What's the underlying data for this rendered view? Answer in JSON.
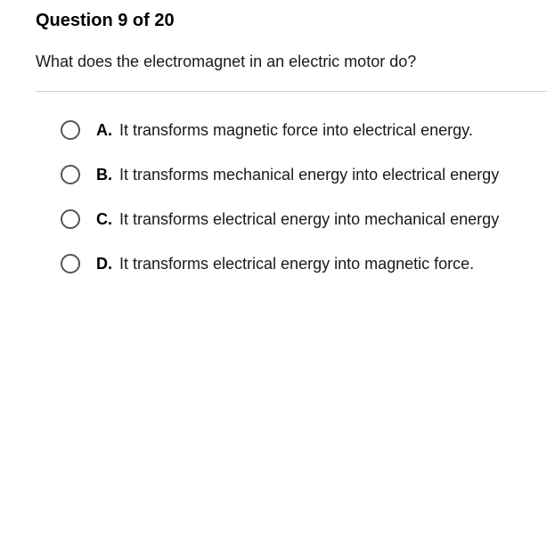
{
  "question": {
    "header": "Question 9 of 20",
    "text": "What does the electromagnet in an electric motor do?"
  },
  "options": [
    {
      "letter": "A.",
      "text": "It transforms magnetic force into electrical energy."
    },
    {
      "letter": "B.",
      "text": "It transforms mechanical energy into electrical energy"
    },
    {
      "letter": "C.",
      "text": "It transforms electrical energy into mechanical energy"
    },
    {
      "letter": "D.",
      "text": "It transforms electrical energy into magnetic force."
    }
  ],
  "colors": {
    "background": "#ffffff",
    "text": "#1a1a1a",
    "header_text": "#000000",
    "radio_border": "#555555",
    "divider": "#d0d0d0"
  },
  "typography": {
    "header_fontsize": 20,
    "question_fontsize": 18,
    "option_fontsize": 18
  }
}
